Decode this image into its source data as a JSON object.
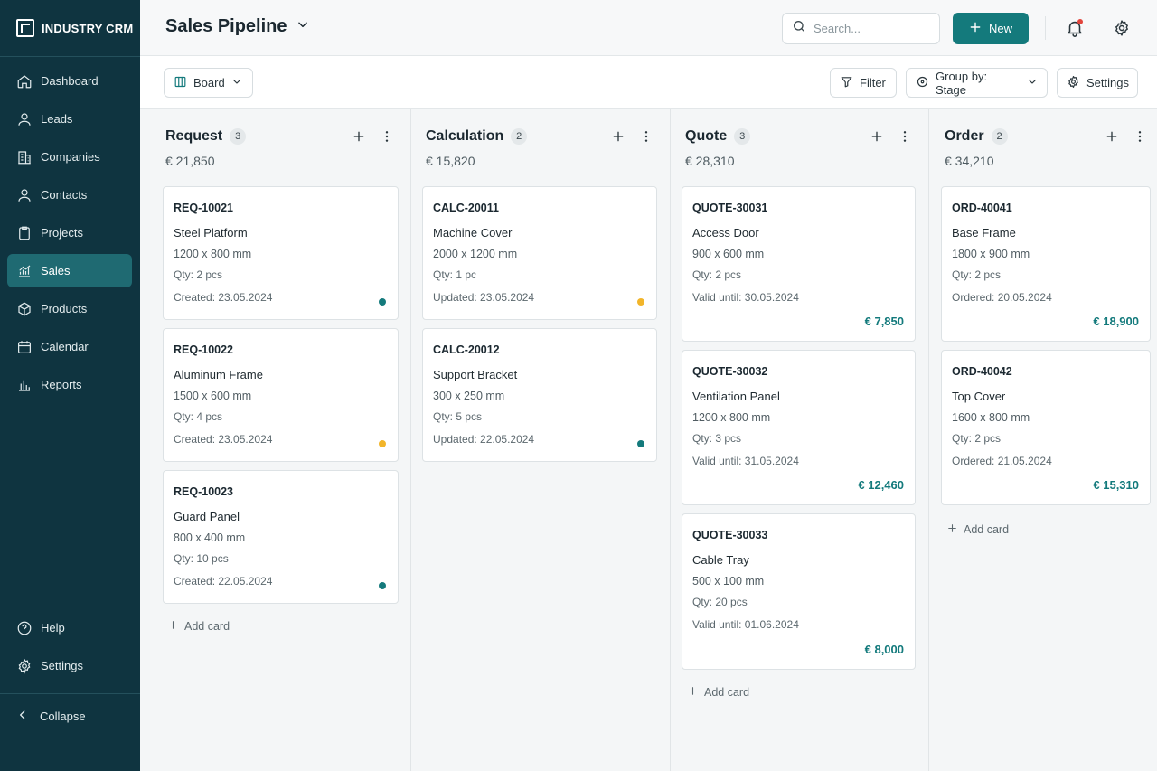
{
  "app": {
    "brand": "INDUSTRY CRM"
  },
  "sidebar": {
    "items": [
      {
        "label": "Dashboard",
        "icon": "home-icon"
      },
      {
        "label": "Leads",
        "icon": "user-icon"
      },
      {
        "label": "Companies",
        "icon": "building-icon"
      },
      {
        "label": "Contacts",
        "icon": "user-icon"
      },
      {
        "label": "Projects",
        "icon": "clipboard-icon"
      },
      {
        "label": "Sales",
        "icon": "chart-icon",
        "active": true
      },
      {
        "label": "Products",
        "icon": "box-icon"
      },
      {
        "label": "Calendar",
        "icon": "calendar-icon"
      },
      {
        "label": "Reports",
        "icon": "bar-chart-icon"
      }
    ],
    "bottom": [
      {
        "label": "Help",
        "icon": "help-icon"
      },
      {
        "label": "Settings",
        "icon": "gear-icon"
      }
    ],
    "collapse_label": "Collapse"
  },
  "header": {
    "title": "Sales Pipeline",
    "search_placeholder": "Search...",
    "new_label": "New",
    "notification_dot": true
  },
  "toolbar": {
    "view_label": "Board",
    "filter_label": "Filter",
    "group_label": "Group by: Stage",
    "settings_label": "Settings"
  },
  "colors": {
    "accent": "#147a7c",
    "sidebar_bg": "#0f3440",
    "dot_teal": "#147a7c",
    "dot_yellow": "#f2b52a",
    "price": "#137a7c"
  },
  "columns": [
    {
      "title": "Request",
      "count": "3",
      "total": "€ 21,850",
      "cards": [
        {
          "id": "REQ-10021",
          "name": "Steel Platform",
          "dims": "1200 x 800 mm",
          "qty": "Qty: 2 pcs",
          "date": "Created: 23.05.2024",
          "dot": "teal"
        },
        {
          "id": "REQ-10022",
          "name": "Aluminum Frame",
          "dims": "1500 x 600 mm",
          "qty": "Qty: 4 pcs",
          "date": "Created: 23.05.2024",
          "dot": "yellow"
        },
        {
          "id": "REQ-10023",
          "name": "Guard Panel",
          "dims": "800 x 400 mm",
          "qty": "Qty: 10 pcs",
          "date": "Created: 22.05.2024",
          "dot": "teal"
        }
      ],
      "add_label": "Add card"
    },
    {
      "title": "Calculation",
      "count": "2",
      "total": "€ 15,820",
      "cards": [
        {
          "id": "CALC-20011",
          "name": "Machine Cover",
          "dims": "2000 x 1200 mm",
          "qty": "Qty: 1 pc",
          "date": "Updated: 23.05.2024",
          "dot": "yellow"
        },
        {
          "id": "CALC-20012",
          "name": "Support Bracket",
          "dims": "300 x 250 mm",
          "qty": "Qty: 5 pcs",
          "date": "Updated: 22.05.2024",
          "dot": "teal"
        }
      ]
    },
    {
      "title": "Quote",
      "count": "3",
      "total": "€ 28,310",
      "cards": [
        {
          "id": "QUOTE-30031",
          "name": "Access Door",
          "dims": "900 x 600 mm",
          "qty": "Qty: 2 pcs",
          "date": "Valid until: 30.05.2024",
          "price": "€ 7,850"
        },
        {
          "id": "QUOTE-30032",
          "name": "Ventilation Panel",
          "dims": "1200 x 800 mm",
          "qty": "Qty: 3 pcs",
          "date": "Valid until: 31.05.2024",
          "price": "€ 12,460"
        },
        {
          "id": "QUOTE-30033",
          "name": "Cable Tray",
          "dims": "500 x 100 mm",
          "qty": "Qty: 20 pcs",
          "date": "Valid until: 01.06.2024",
          "price": "€ 8,000"
        }
      ],
      "add_label": "Add card"
    },
    {
      "title": "Order",
      "count": "2",
      "total": "€ 34,210",
      "cards": [
        {
          "id": "ORD-40041",
          "name": "Base Frame",
          "dims": "1800 x 900 mm",
          "qty": "Qty: 2 pcs",
          "date": "Ordered: 20.05.2024",
          "price": "€ 18,900"
        },
        {
          "id": "ORD-40042",
          "name": "Top Cover",
          "dims": "1600 x 800 mm",
          "qty": "Qty: 2 pcs",
          "date": "Ordered: 21.05.2024",
          "price": "€ 15,310"
        }
      ],
      "add_label": "Add card"
    }
  ]
}
